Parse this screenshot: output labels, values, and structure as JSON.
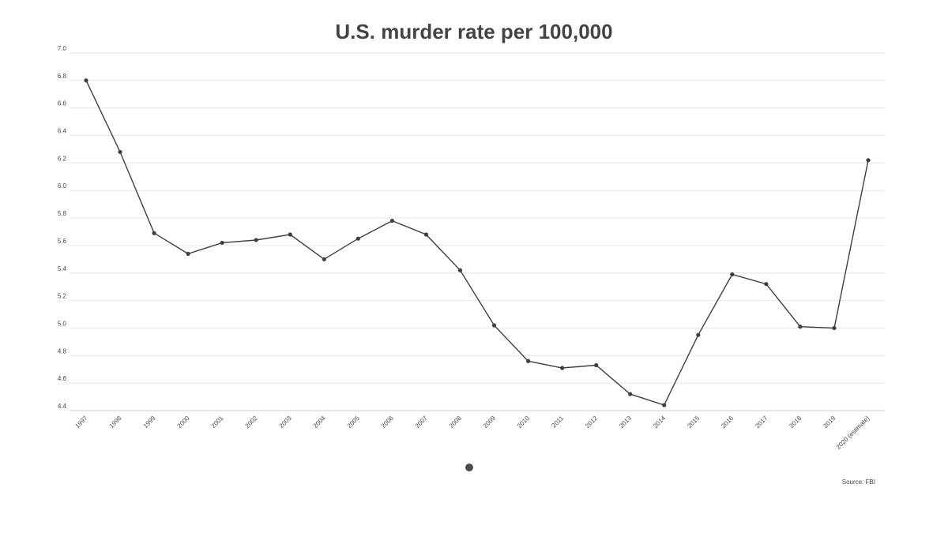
{
  "chart_data": {
    "type": "line",
    "title": "U.S. murder rate per 100,000",
    "xlabel": "",
    "ylabel": "",
    "ylim": [
      4.4,
      7.0
    ],
    "yticks": [
      "4.4",
      "4.6",
      "4.8",
      "5.0",
      "5.2",
      "5.4",
      "5.6",
      "5.8",
      "6.0",
      "6.2",
      "6.4",
      "6.6",
      "6.8",
      "7.0"
    ],
    "categories": [
      "1997",
      "1998",
      "1999",
      "2000",
      "2001",
      "2002",
      "2003",
      "2004",
      "2005",
      "2006",
      "2007",
      "2008",
      "2009",
      "2010",
      "2011",
      "2012",
      "2013",
      "2014",
      "2015",
      "2016",
      "2017",
      "2018",
      "2019",
      "2020 (estimate)"
    ],
    "series": [
      {
        "values": [
          6.8,
          6.28,
          5.69,
          5.54,
          5.62,
          5.64,
          5.68,
          5.5,
          5.65,
          5.78,
          5.68,
          5.42,
          5.02,
          4.76,
          4.71,
          4.73,
          4.52,
          4.44,
          4.95,
          5.39,
          5.32,
          5.01,
          5.0,
          6.22
        ],
        "color": "#3f3f3f"
      }
    ],
    "grid": true,
    "legend": "bottom-center",
    "legend_color": "#4a4a4a",
    "source": "Source: FBI"
  }
}
